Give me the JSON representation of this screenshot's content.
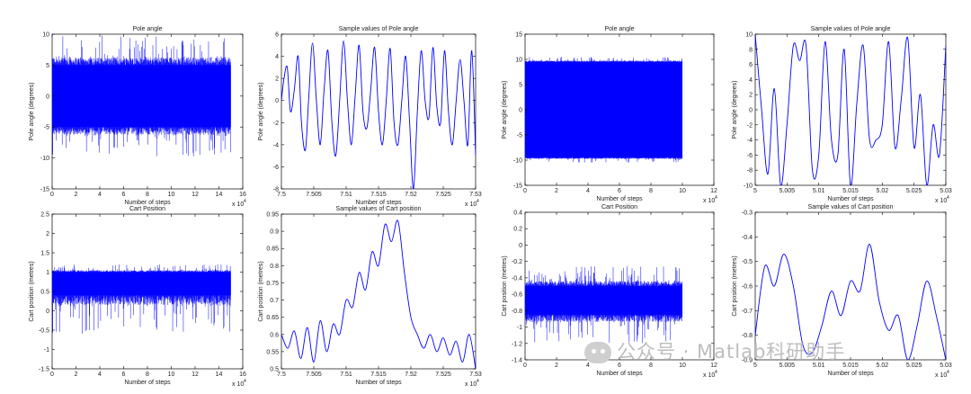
{
  "chart_data": [
    {
      "type": "line",
      "title": "Pole angle",
      "xlabel": "Number of steps",
      "ylabel": "Pole angle (degrees)",
      "xlim": [
        0,
        160000
      ],
      "ylim": [
        -15,
        10
      ],
      "xticks": [
        "0",
        "2",
        "4",
        "6",
        "8",
        "10",
        "12",
        "14",
        "16"
      ],
      "yticks": [
        "-15",
        "-10",
        "-5",
        "0",
        "5",
        "10"
      ],
      "x_multiplier": "x 10",
      "x_exponent": "4",
      "series": [
        {
          "x_range": [
            0,
            150000
          ],
          "band_core": [
            -5,
            5
          ],
          "band_spikes": [
            -10,
            10
          ],
          "color": "#0000ff"
        }
      ]
    },
    {
      "type": "line",
      "title": "Sample values of Pole angle",
      "xlabel": "Number of steps",
      "ylabel": "Pole angle (degrees)",
      "xlim": [
        75000,
        75300
      ],
      "ylim": [
        -8,
        6
      ],
      "xticks": [
        "7.5",
        "7.505",
        "7.51",
        "7.515",
        "7.52",
        "7.525",
        "7.53"
      ],
      "yticks": [
        "-8",
        "-6",
        "-4",
        "-2",
        "0",
        "2",
        "4",
        "6"
      ],
      "x_multiplier": "x 10",
      "x_exponent": "4",
      "series": [
        {
          "x": [
            75000,
            75004,
            75009,
            75014,
            75020,
            75026,
            75031,
            75037,
            75042,
            75048,
            75054,
            75060,
            75066,
            75072,
            75078,
            75084,
            75090,
            75096,
            75102,
            75108,
            75114,
            75120,
            75126,
            75132,
            75138,
            75144,
            75150,
            75156,
            75162,
            75168,
            75174,
            75180,
            75186,
            75192,
            75198,
            75204,
            75210,
            75216,
            75222,
            75228,
            75234,
            75240,
            75246,
            75252,
            75258,
            75264,
            75270,
            75276,
            75282,
            75288,
            75294,
            75300
          ],
          "y": [
            0,
            2,
            3,
            -1,
            1,
            4,
            -2,
            -4.5,
            0,
            5.2,
            0,
            -4,
            1,
            4.5,
            -2,
            -5,
            0,
            5.4,
            0,
            -4,
            0.5,
            5,
            -1,
            -2.5,
            1,
            4.8,
            -1,
            -4,
            0,
            4.7,
            -2,
            -4,
            0,
            4,
            -2,
            -8,
            -1,
            4.5,
            0,
            -1.5,
            4.8,
            -0.5,
            -2,
            4.5,
            -1,
            -4,
            0,
            3.7,
            0,
            -4,
            4.5,
            -5
          ],
          "color": "#0000ff"
        }
      ]
    },
    {
      "type": "line",
      "title": "Pole angle",
      "xlabel": "Number of steps",
      "ylabel": "Pole angle (degrees)",
      "xlim": [
        0,
        120000
      ],
      "ylim": [
        -15,
        15
      ],
      "xticks": [
        "0",
        "2",
        "4",
        "6",
        "8",
        "10",
        "12"
      ],
      "yticks": [
        "-15",
        "-10",
        "-5",
        "0",
        "5",
        "10",
        "15"
      ],
      "x_multiplier": "x 10",
      "x_exponent": "4",
      "series": [
        {
          "x_range": [
            0,
            100000
          ],
          "band_core": [
            -9.5,
            9.5
          ],
          "band_spikes": [
            -10.5,
            10.5
          ],
          "color": "#0000ff"
        }
      ]
    },
    {
      "type": "line",
      "title": "Sample values of Pole angle",
      "xlabel": "Number of steps",
      "ylabel": "Pole angle (degrees)",
      "xlim": [
        50000,
        50300
      ],
      "ylim": [
        -10,
        10
      ],
      "xticks": [
        "5",
        "5.005",
        "5.01",
        "5.015",
        "5.02",
        "5.025",
        "5.03"
      ],
      "yticks": [
        "-10",
        "-8",
        "-6",
        "-4",
        "-2",
        "0",
        "2",
        "4",
        "6",
        "8",
        "10"
      ],
      "x_multiplier": "x 10",
      "x_exponent": "4",
      "series": [
        {
          "x": [
            50000,
            50010,
            50020,
            50030,
            50040,
            50050,
            50060,
            50070,
            50080,
            50090,
            50100,
            50110,
            50120,
            50130,
            50140,
            50150,
            50160,
            50170,
            50180,
            50190,
            50200,
            50210,
            50220,
            50230,
            50240,
            50250,
            50260,
            50270,
            50280,
            50290,
            50300
          ],
          "y": [
            10,
            0,
            -8.5,
            2.8,
            -10,
            -2,
            8.5,
            6.5,
            8.5,
            -8,
            -6,
            9,
            -4,
            -6,
            8,
            -10,
            1,
            8.5,
            -4,
            -4,
            -2,
            9,
            -5,
            1.5,
            9.5,
            -5,
            2,
            -10,
            -2,
            -6,
            8.5
          ],
          "color": "#0000ff"
        }
      ]
    },
    {
      "type": "line",
      "title": "Cart Position",
      "xlabel": "Number of steps",
      "ylabel": "Cart position (metres)",
      "xlim": [
        0,
        160000
      ],
      "ylim": [
        -1.5,
        2.5
      ],
      "xticks": [
        "0",
        "2",
        "4",
        "6",
        "8",
        "10",
        "12",
        "14",
        "16"
      ],
      "yticks": [
        "-1.5",
        "-1",
        "-0.5",
        "0",
        "0.5",
        "1",
        "1.5",
        "2",
        "2.5"
      ],
      "x_multiplier": "x 10",
      "x_exponent": "4",
      "series": [
        {
          "x_range": [
            0,
            150000
          ],
          "band_core": [
            0.4,
            1.0
          ],
          "band_spikes": [
            -0.6,
            1.2
          ],
          "color": "#0000ff"
        }
      ]
    },
    {
      "type": "line",
      "title": "Sample values of Cart position",
      "xlabel": "Number of steps",
      "ylabel": "Cart position (metres)",
      "xlim": [
        75000,
        75300
      ],
      "ylim": [
        0.5,
        0.95
      ],
      "xticks": [
        "7.5",
        "7.505",
        "7.51",
        "7.515",
        "7.52",
        "7.525",
        "7.53"
      ],
      "yticks": [
        "0.5",
        "0.55",
        "0.6",
        "0.65",
        "0.7",
        "0.75",
        "0.8",
        "0.85",
        "0.9",
        "0.95"
      ],
      "x_multiplier": "x 10",
      "x_exponent": "4",
      "series": [
        {
          "x": [
            75000,
            75010,
            75020,
            75030,
            75040,
            75050,
            75060,
            75070,
            75080,
            75090,
            75100,
            75110,
            75120,
            75130,
            75140,
            75150,
            75160,
            75170,
            75180,
            75190,
            75200,
            75210,
            75220,
            75230,
            75240,
            75250,
            75260,
            75270,
            75280,
            75290,
            75300
          ],
          "y": [
            0.6,
            0.56,
            0.61,
            0.53,
            0.62,
            0.52,
            0.64,
            0.55,
            0.63,
            0.6,
            0.7,
            0.68,
            0.78,
            0.73,
            0.84,
            0.8,
            0.92,
            0.87,
            0.93,
            0.78,
            0.65,
            0.6,
            0.56,
            0.6,
            0.55,
            0.59,
            0.54,
            0.58,
            0.52,
            0.6,
            0.5
          ],
          "color": "#0000ff"
        }
      ]
    },
    {
      "type": "line",
      "title": "Cart Position",
      "xlabel": "Number of steps",
      "ylabel": "Cart position (metres)",
      "xlim": [
        0,
        120000
      ],
      "ylim": [
        -1.4,
        0.4
      ],
      "xticks": [
        "0",
        "2",
        "4",
        "6",
        "8",
        "10",
        "12"
      ],
      "yticks": [
        "-1.4",
        "-1.2",
        "-1",
        "-0.8",
        "-0.6",
        "-0.4",
        "-0.2",
        "0",
        "0.2",
        "0.4"
      ],
      "x_multiplier": "x 10",
      "x_exponent": "4",
      "series": [
        {
          "x_range": [
            0,
            100000
          ],
          "band_core": [
            -0.85,
            -0.5
          ],
          "band_spikes": [
            -1.2,
            -0.25
          ],
          "color": "#0000ff"
        }
      ]
    },
    {
      "type": "line",
      "title": "Sample values of Cart position",
      "xlabel": "Number of steps",
      "ylabel": "Cart position (metres)",
      "xlim": [
        50000,
        50300
      ],
      "ylim": [
        -0.9,
        -0.3
      ],
      "xticks": [
        "5",
        "5.005",
        "5.01",
        "5.015",
        "5.02",
        "5.025",
        "5.03"
      ],
      "yticks": [
        "-0.9",
        "-0.8",
        "-0.7",
        "-0.6",
        "-0.5",
        "-0.4",
        "-0.3"
      ],
      "x_multiplier": "x 10",
      "x_exponent": "4",
      "series": [
        {
          "x": [
            50000,
            50015,
            50030,
            50045,
            50060,
            50075,
            50090,
            50105,
            50120,
            50135,
            50150,
            50165,
            50180,
            50195,
            50210,
            50225,
            50240,
            50255,
            50270,
            50285,
            50300
          ],
          "y": [
            -0.8,
            -0.52,
            -0.6,
            -0.47,
            -0.6,
            -0.84,
            -0.87,
            -0.76,
            -0.62,
            -0.72,
            -0.58,
            -0.62,
            -0.43,
            -0.66,
            -0.78,
            -0.72,
            -0.9,
            -0.76,
            -0.58,
            -0.72,
            -0.9
          ],
          "color": "#0000ff"
        }
      ]
    }
  ],
  "watermark": {
    "text": "公众号 · Matlab科研助手"
  }
}
